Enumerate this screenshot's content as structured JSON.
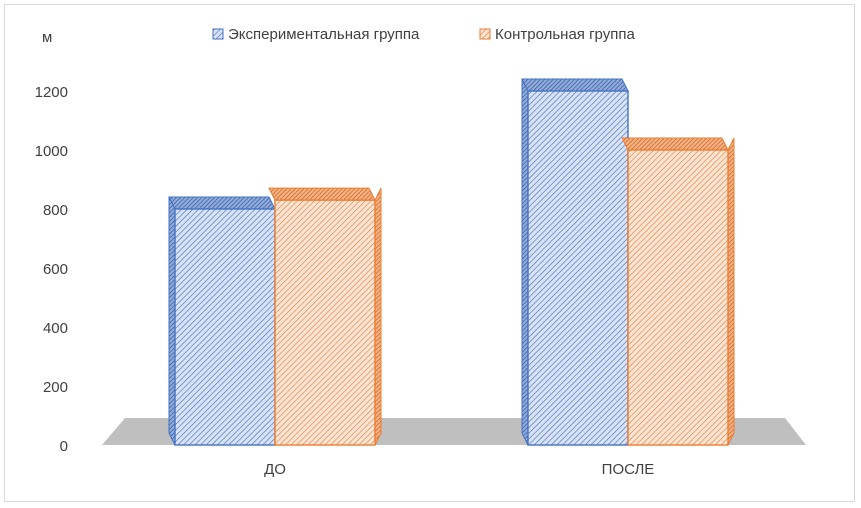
{
  "chart_data": {
    "type": "bar",
    "title": "",
    "ylabel": "м",
    "xlabel": "",
    "categories": [
      "ДО",
      "ПОСЛЕ"
    ],
    "series": [
      {
        "name": "Экспериментальная группа",
        "values": [
          800,
          1200
        ],
        "color": "#4472C4",
        "pattern": "diagonal-hatch"
      },
      {
        "name": "Контрольная группа",
        "values": [
          830,
          1000
        ],
        "color": "#ED7D31",
        "pattern": "diagonal-hatch"
      }
    ],
    "ylim": [
      0,
      1200
    ],
    "yticks": [
      "0",
      "200",
      "400",
      "600",
      "800",
      "1000",
      "1200"
    ],
    "legend_position": "top",
    "grid": false,
    "floor_color": "#bfbfbf",
    "style": "3d-clustered-column"
  }
}
